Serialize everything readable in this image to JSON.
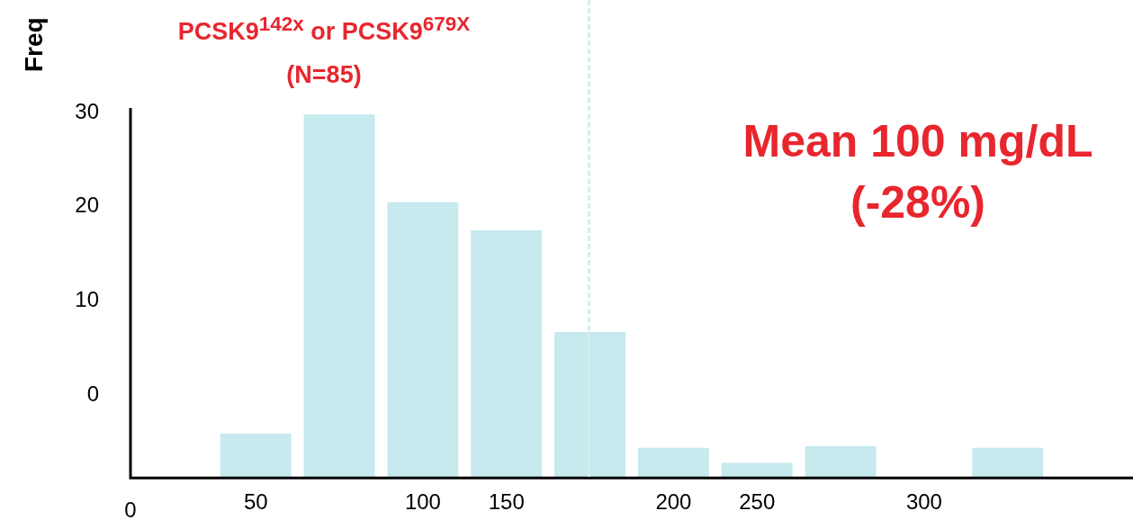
{
  "chart_data": {
    "type": "bar",
    "ylabel": "Freq",
    "categories": [
      null,
      "50",
      null,
      "100",
      "150",
      null,
      "200",
      "250",
      null,
      "300",
      null,
      null
    ],
    "values": [
      null,
      4.7,
      38.6,
      29.3,
      26.3,
      15.5,
      3.2,
      1.6,
      3.4,
      null,
      3.2,
      null
    ],
    "base": [
      null,
      -8.8,
      -8.8,
      -8.8,
      -8.8,
      -8.8,
      -8.8,
      -8.8,
      -8.8,
      null,
      -8.8,
      null
    ],
    "color": "#c6eaee",
    "ylim": [
      -8.8,
      30.5
    ],
    "yticks": [
      0,
      10,
      20,
      30
    ],
    "annotations": [
      "PCSK9$^{142x}$ or PCSK9$^{679X}$",
      "(N=85)",
      "Mean 100 mg/dL",
      "(-28%)",
      "0"
    ]
  }
}
